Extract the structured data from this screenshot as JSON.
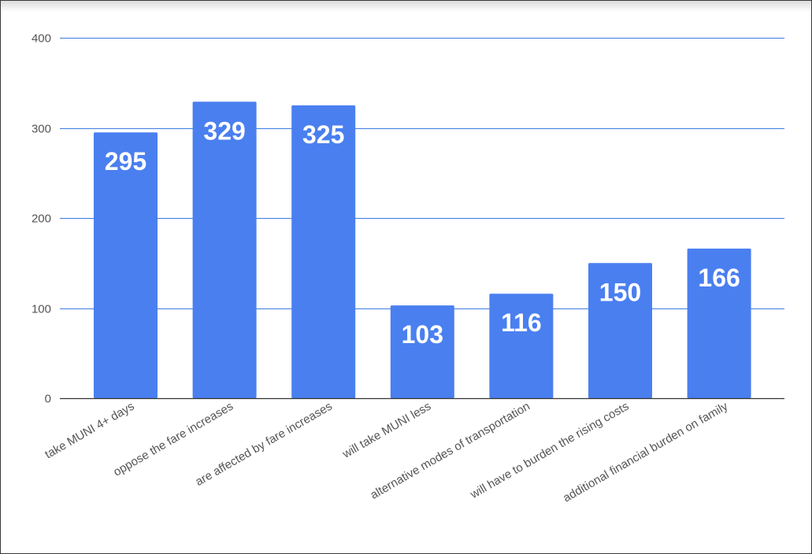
{
  "chart_data": {
    "type": "bar",
    "categories": [
      "take MUNI 4+ days",
      "oppose the fare increases",
      "are affected by fare increases",
      "will take MUNI less",
      "alternative modes of transportation",
      "will have to burden the rising costs",
      "additional financial burden on family"
    ],
    "values": [
      295,
      329,
      325,
      103,
      116,
      150,
      166
    ],
    "data_labels": [
      "295",
      "329",
      "325",
      "103",
      "116",
      "150",
      "166"
    ],
    "y_ticks": [
      0,
      100,
      200,
      300,
      400
    ],
    "y_tick_labels": [
      "0",
      "100",
      "200",
      "300",
      "400"
    ],
    "ylim": [
      0,
      400
    ],
    "grid": true,
    "legend": "none",
    "bar_color": "#4a7ff0",
    "grid_color": "#3d7be0",
    "baseline_color": "#333333"
  }
}
